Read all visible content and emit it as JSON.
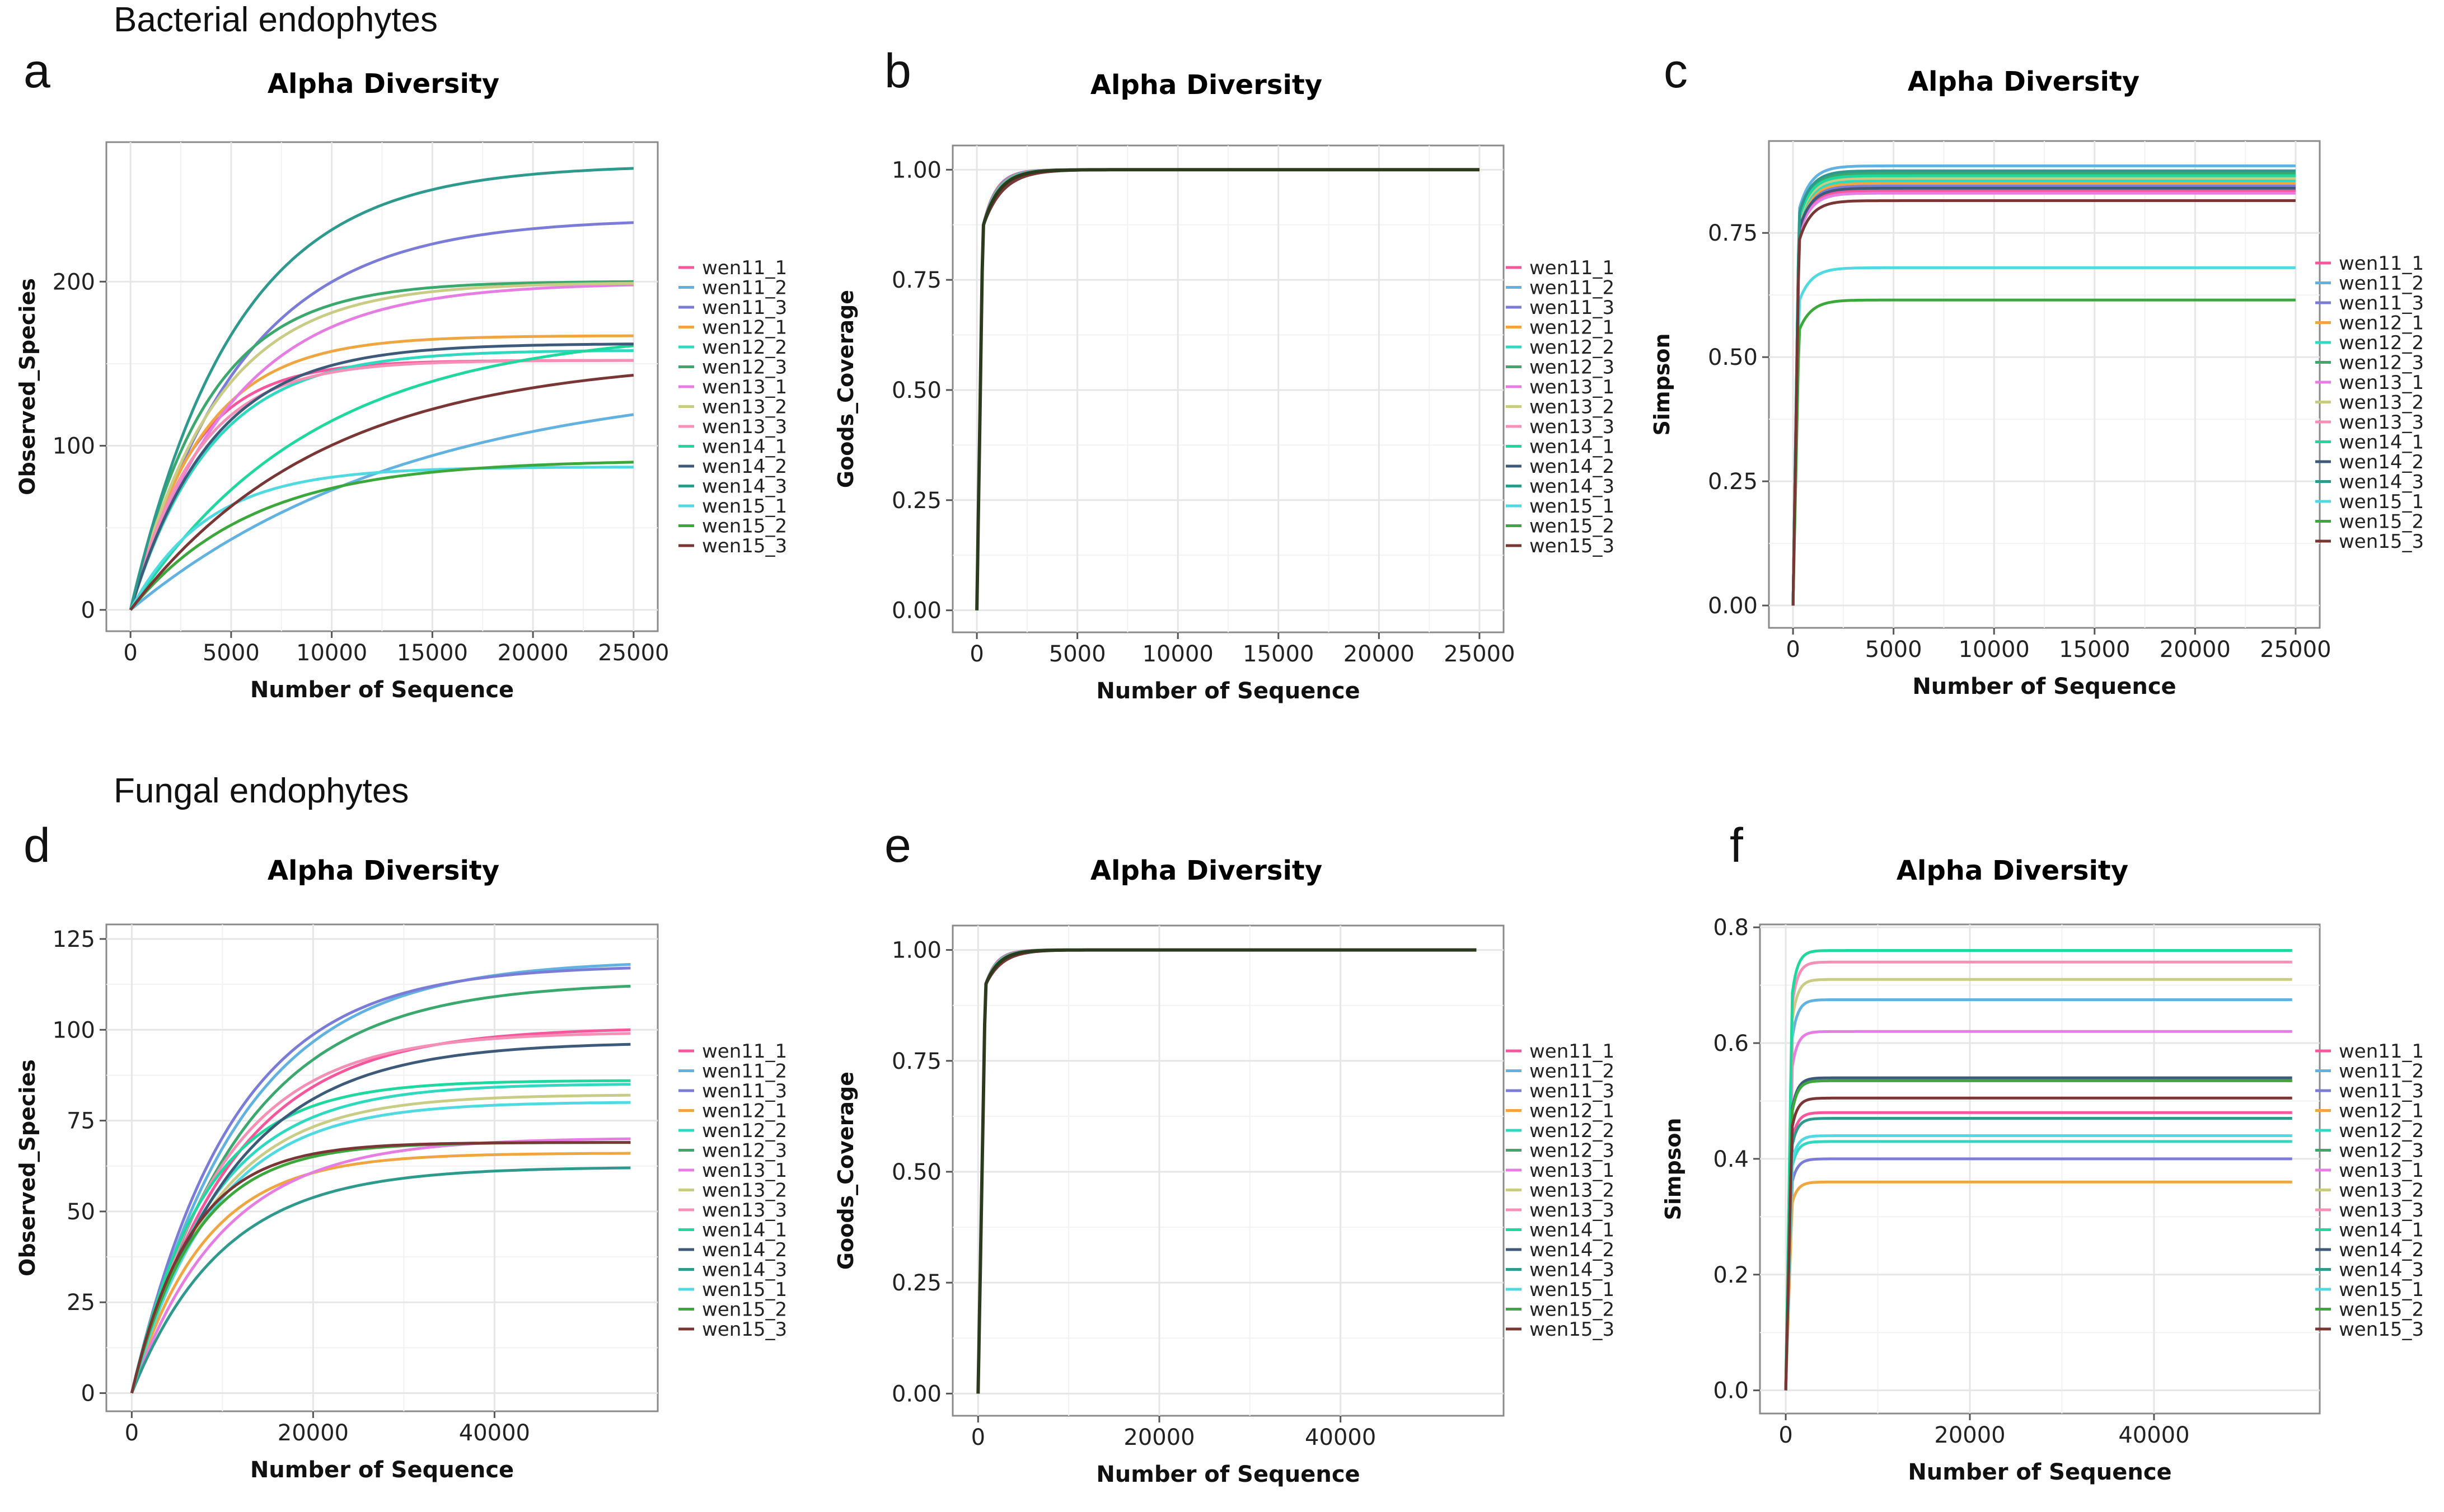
{
  "figure": {
    "section_bacterial": "Bacterial endophytes",
    "section_fungal": "Fungal endophytes"
  },
  "legend_labels": [
    "wen11_1",
    "wen11_2",
    "wen11_3",
    "wen12_1",
    "wen12_2",
    "wen12_3",
    "wen13_1",
    "wen13_2",
    "wen13_3",
    "wen14_1",
    "wen14_2",
    "wen14_3",
    "wen15_1",
    "wen15_2",
    "wen15_3"
  ],
  "series_colors": [
    "#F8569C",
    "#61B2E0",
    "#7B7BD8",
    "#F0A640",
    "#2ED9C0",
    "#3BA86E",
    "#E67DE3",
    "#C9CC84",
    "#F58FB6",
    "#1FD89D",
    "#3D5A7A",
    "#2E9A8E",
    "#4FD9E0",
    "#3CA83C",
    "#7A3535"
  ],
  "chart_data": [
    {
      "panel": "a",
      "type": "line",
      "title": "Alpha Diversity",
      "xlabel": "Number of Sequence",
      "ylabel": "Observed_Species",
      "xlim": [
        -1200,
        26200
      ],
      "ylim": [
        -13,
        285
      ],
      "xticks": [
        0,
        5000,
        10000,
        15000,
        20000,
        25000
      ],
      "xtick_labels": [
        "0",
        "5000",
        "10000",
        "15000",
        "20000",
        "25000"
      ],
      "yticks": [
        0,
        100,
        200
      ],
      "ytick_labels": [
        "0",
        "100",
        "200"
      ],
      "x_max": 25000,
      "series": [
        {
          "name": "wen11_1",
          "final": 152,
          "k": 3000
        },
        {
          "name": "wen11_2",
          "final": 119,
          "k": 14000
        },
        {
          "name": "wen11_3",
          "final": 236,
          "k": 5500
        },
        {
          "name": "wen12_1",
          "final": 167,
          "k": 3500
        },
        {
          "name": "wen12_2",
          "final": 158,
          "k": 4000
        },
        {
          "name": "wen12_3",
          "final": 200,
          "k": 3800
        },
        {
          "name": "wen13_1",
          "final": 198,
          "k": 5000
        },
        {
          "name": "wen13_2",
          "final": 199,
          "k": 4200
        },
        {
          "name": "wen13_3",
          "final": 152,
          "k": 3300
        },
        {
          "name": "wen14_1",
          "final": 161,
          "k": 9000
        },
        {
          "name": "wen14_2",
          "final": 162,
          "k": 4000
        },
        {
          "name": "wen14_3",
          "final": 269,
          "k": 5200
        },
        {
          "name": "wen15_1",
          "final": 87,
          "k": 3800
        },
        {
          "name": "wen15_2",
          "final": 90,
          "k": 6000
        },
        {
          "name": "wen15_3",
          "final": 143,
          "k": 9500
        }
      ]
    },
    {
      "panel": "b",
      "type": "line",
      "title": "Alpha Diversity",
      "xlabel": "Number of Sequence",
      "ylabel": "Goods_Coverage",
      "xlim": [
        -1200,
        26200
      ],
      "ylim": [
        -0.05,
        1.055
      ],
      "xticks": [
        0,
        5000,
        10000,
        15000,
        20000,
        25000
      ],
      "xtick_labels": [
        "0",
        "5000",
        "10000",
        "15000",
        "20000",
        "25000"
      ],
      "yticks": [
        0,
        0.25,
        0.5,
        0.75,
        1.0
      ],
      "ytick_labels": [
        "0.00",
        "0.25",
        "0.50",
        "0.75",
        "1.00"
      ],
      "x_max": 25000,
      "jump_x": 300,
      "jump_y": 0.87,
      "final": 1.0,
      "k": 800
    },
    {
      "panel": "c",
      "type": "line",
      "title": "Alpha Diversity",
      "xlabel": "Number of Sequence",
      "ylabel": "Simpson",
      "xlim": [
        -1200,
        26200
      ],
      "ylim": [
        -0.045,
        0.935
      ],
      "xticks": [
        0,
        5000,
        10000,
        15000,
        20000,
        25000
      ],
      "xtick_labels": [
        "0",
        "5000",
        "10000",
        "15000",
        "20000",
        "25000"
      ],
      "yticks": [
        0,
        0.25,
        0.5,
        0.75
      ],
      "ytick_labels": [
        "0.00",
        "0.25",
        "0.50",
        "0.75"
      ],
      "x_max": 25000,
      "jump_x": 300,
      "series": [
        {
          "name": "wen11_1",
          "final": 0.835
        },
        {
          "name": "wen11_2",
          "final": 0.885
        },
        {
          "name": "wen11_3",
          "final": 0.845
        },
        {
          "name": "wen12_1",
          "final": 0.85
        },
        {
          "name": "wen12_2",
          "final": 0.855
        },
        {
          "name": "wen12_3",
          "final": 0.87
        },
        {
          "name": "wen13_1",
          "final": 0.83
        },
        {
          "name": "wen13_2",
          "final": 0.86
        },
        {
          "name": "wen13_3",
          "final": 0.84
        },
        {
          "name": "wen14_1",
          "final": 0.865
        },
        {
          "name": "wen14_2",
          "final": 0.84
        },
        {
          "name": "wen14_3",
          "final": 0.875
        },
        {
          "name": "wen15_1",
          "final": 0.68
        },
        {
          "name": "wen15_2",
          "final": 0.615
        },
        {
          "name": "wen15_3",
          "final": 0.815
        }
      ]
    },
    {
      "panel": "d",
      "type": "line",
      "title": "Alpha Diversity",
      "xlabel": "Number of Sequence",
      "ylabel": "Observed_Species",
      "xlim": [
        -2800,
        58000
      ],
      "ylim": [
        -5,
        129
      ],
      "xticks": [
        0,
        20000,
        40000
      ],
      "xtick_labels": [
        "0",
        "20000",
        "40000"
      ],
      "yticks": [
        0,
        25,
        50,
        75,
        100,
        125
      ],
      "ytick_labels": [
        "0",
        "25",
        "50",
        "75",
        "100",
        "125"
      ],
      "x_max": 55000,
      "series": [
        {
          "name": "wen11_1",
          "final": 100,
          "k": 11000
        },
        {
          "name": "wen11_2",
          "final": 118,
          "k": 12000
        },
        {
          "name": "wen11_3",
          "final": 117,
          "k": 11000
        },
        {
          "name": "wen12_1",
          "final": 66,
          "k": 8000
        },
        {
          "name": "wen12_2",
          "final": 85,
          "k": 9000
        },
        {
          "name": "wen12_3",
          "final": 112,
          "k": 12000
        },
        {
          "name": "wen13_1",
          "final": 70,
          "k": 10000
        },
        {
          "name": "wen13_2",
          "final": 82,
          "k": 9000
        },
        {
          "name": "wen13_3",
          "final": 99,
          "k": 10000
        },
        {
          "name": "wen14_1",
          "final": 86,
          "k": 8000
        },
        {
          "name": "wen14_2",
          "final": 96,
          "k": 11000
        },
        {
          "name": "wen14_3",
          "final": 62,
          "k": 10000
        },
        {
          "name": "wen15_1",
          "final": 80,
          "k": 9000
        },
        {
          "name": "wen15_2",
          "final": 69,
          "k": 7000
        },
        {
          "name": "wen15_3",
          "final": 69,
          "k": 6500
        }
      ]
    },
    {
      "panel": "e",
      "type": "line",
      "title": "Alpha Diversity",
      "xlabel": "Number of Sequence",
      "ylabel": "Goods_Coverage",
      "xlim": [
        -2800,
        58000
      ],
      "ylim": [
        -0.05,
        1.055
      ],
      "xticks": [
        0,
        20000,
        40000
      ],
      "xtick_labels": [
        "0",
        "20000",
        "40000"
      ],
      "yticks": [
        0,
        0.25,
        0.5,
        0.75,
        1.0
      ],
      "ytick_labels": [
        "0.00",
        "0.25",
        "0.50",
        "0.75",
        "1.00"
      ],
      "x_max": 55000,
      "jump_x": 800,
      "jump_y": 0.92,
      "final": 1.0,
      "k": 1500
    },
    {
      "panel": "f",
      "type": "line",
      "title": "Alpha Diversity",
      "xlabel": "Number of Sequence",
      "ylabel": "Simpson",
      "xlim": [
        -2800,
        58000
      ],
      "ylim": [
        -0.04,
        0.805
      ],
      "xticks": [
        0,
        20000,
        40000
      ],
      "xtick_labels": [
        "0",
        "20000",
        "40000"
      ],
      "yticks": [
        0,
        0.2,
        0.4,
        0.6,
        0.8
      ],
      "ytick_labels": [
        "0.0",
        "0.2",
        "0.4",
        "0.6",
        "0.8"
      ],
      "x_max": 55000,
      "jump_x": 700,
      "series": [
        {
          "name": "wen11_1",
          "final": 0.48
        },
        {
          "name": "wen11_2",
          "final": 0.675
        },
        {
          "name": "wen11_3",
          "final": 0.4
        },
        {
          "name": "wen12_1",
          "final": 0.36
        },
        {
          "name": "wen12_2",
          "final": 0.43
        },
        {
          "name": "wen12_3",
          "final": 0.535
        },
        {
          "name": "wen13_1",
          "final": 0.62
        },
        {
          "name": "wen13_2",
          "final": 0.71
        },
        {
          "name": "wen13_3",
          "final": 0.74
        },
        {
          "name": "wen14_1",
          "final": 0.76
        },
        {
          "name": "wen14_2",
          "final": 0.54
        },
        {
          "name": "wen14_3",
          "final": 0.47
        },
        {
          "name": "wen15_1",
          "final": 0.44
        },
        {
          "name": "wen15_2",
          "final": 0.535
        },
        {
          "name": "wen15_3",
          "final": 0.505
        }
      ]
    }
  ]
}
